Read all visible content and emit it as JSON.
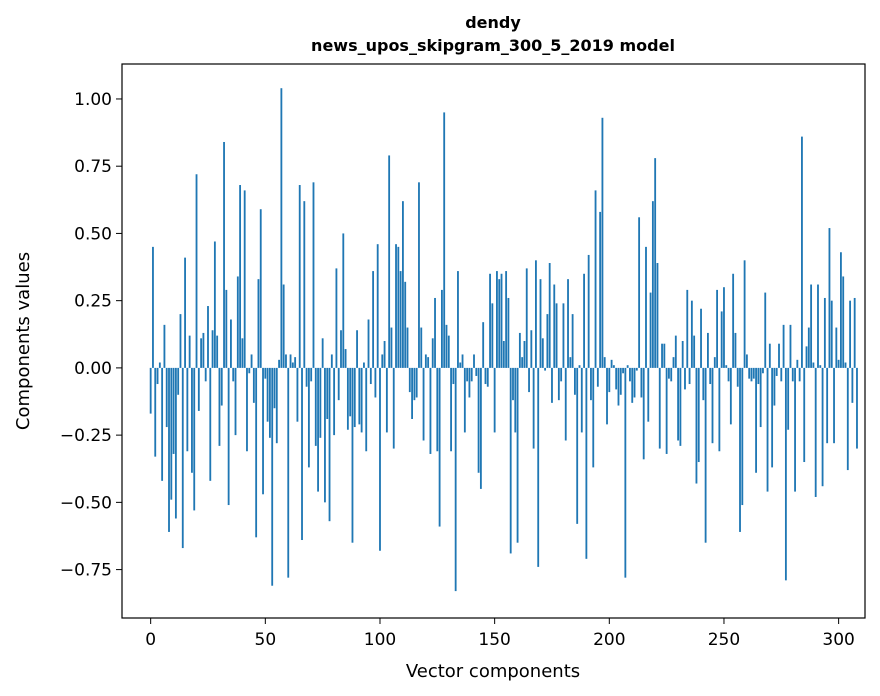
{
  "chart_data": {
    "type": "bar",
    "title": "dendy",
    "subtitle": "news_upos_skipgram_300_5_2019 model",
    "xlabel": "Vector components",
    "ylabel": "Components values",
    "xlim": [
      -12.5,
      311.5
    ],
    "ylim": [
      -0.93,
      1.13
    ],
    "xticks": [
      0,
      50,
      100,
      150,
      200,
      250,
      300
    ],
    "xtick_labels": [
      "0",
      "50",
      "100",
      "150",
      "200",
      "250",
      "300"
    ],
    "yticks": [
      -0.75,
      -0.5,
      -0.25,
      0.0,
      0.25,
      0.5,
      0.75,
      1.0
    ],
    "ytick_labels": [
      "−0.75",
      "−0.50",
      "−0.25",
      "0.00",
      "0.25",
      "0.50",
      "0.75",
      "1.00"
    ],
    "color": "#1f77b4",
    "values": [
      -0.17,
      0.45,
      -0.33,
      -0.06,
      0.02,
      -0.42,
      0.16,
      -0.22,
      -0.61,
      -0.49,
      -0.32,
      -0.56,
      -0.1,
      0.2,
      -0.67,
      0.41,
      -0.31,
      0.12,
      -0.39,
      -0.53,
      0.72,
      -0.16,
      0.11,
      0.13,
      -0.05,
      0.23,
      -0.42,
      0.14,
      0.47,
      0.12,
      -0.29,
      -0.14,
      0.84,
      0.29,
      -0.51,
      0.18,
      -0.05,
      -0.25,
      0.34,
      0.68,
      0.11,
      0.66,
      -0.31,
      -0.02,
      0.05,
      -0.13,
      -0.63,
      0.33,
      0.59,
      -0.47,
      -0.04,
      -0.2,
      -0.26,
      -0.81,
      -0.15,
      -0.28,
      0.03,
      1.04,
      0.31,
      0.05,
      -0.78,
      0.05,
      0.02,
      0.04,
      -0.2,
      0.68,
      -0.64,
      0.62,
      -0.07,
      -0.37,
      -0.05,
      0.69,
      -0.29,
      -0.46,
      -0.26,
      0.11,
      -0.5,
      -0.19,
      -0.57,
      0.05,
      -0.25,
      0.37,
      -0.12,
      0.14,
      0.5,
      0.07,
      -0.23,
      -0.18,
      -0.65,
      -0.22,
      0.14,
      -0.21,
      -0.24,
      0.02,
      -0.31,
      0.18,
      -0.06,
      0.36,
      -0.11,
      0.46,
      -0.68,
      0.05,
      0.1,
      -0.24,
      0.79,
      0.15,
      -0.3,
      0.46,
      0.45,
      0.36,
      0.62,
      0.32,
      0.15,
      -0.09,
      -0.19,
      -0.12,
      -0.11,
      0.69,
      0.15,
      -0.27,
      0.05,
      0.04,
      -0.32,
      0.11,
      0.26,
      -0.31,
      -0.59,
      0.29,
      0.95,
      0.16,
      0.12,
      -0.31,
      -0.06,
      -0.83,
      0.36,
      0.02,
      0.05,
      -0.24,
      -0.05,
      -0.11,
      -0.05,
      0.05,
      -0.03,
      -0.39,
      -0.45,
      0.17,
      -0.06,
      -0.07,
      0.35,
      0.24,
      -0.24,
      0.36,
      0.33,
      0.35,
      0.1,
      0.36,
      0.26,
      -0.69,
      -0.12,
      -0.24,
      -0.65,
      0.13,
      0.04,
      0.1,
      0.37,
      -0.09,
      0.14,
      -0.3,
      0.4,
      -0.74,
      0.33,
      0.11,
      -0.01,
      0.2,
      0.39,
      -0.13,
      0.31,
      0.24,
      -0.12,
      -0.05,
      0.24,
      -0.27,
      0.33,
      0.04,
      0.2,
      -0.1,
      -0.58,
      0.01,
      -0.24,
      0.35,
      -0.71,
      0.42,
      -0.12,
      -0.37,
      0.66,
      -0.07,
      0.58,
      0.93,
      0.04,
      -0.21,
      -0.09,
      0.03,
      0.01,
      -0.08,
      -0.14,
      -0.1,
      -0.02,
      -0.78,
      0.01,
      -0.05,
      -0.13,
      -0.11,
      -0.01,
      0.56,
      -0.11,
      -0.34,
      0.45,
      -0.2,
      0.28,
      0.62,
      0.78,
      0.39,
      -0.3,
      0.09,
      0.09,
      -0.32,
      -0.04,
      -0.05,
      0.04,
      0.12,
      -0.27,
      -0.29,
      0.1,
      -0.08,
      0.29,
      -0.06,
      0.25,
      0.12,
      -0.43,
      -0.35,
      0.22,
      -0.12,
      -0.65,
      0.13,
      -0.06,
      -0.28,
      0.04,
      0.29,
      -0.31,
      0.21,
      0.3,
      0.01,
      -0.05,
      -0.21,
      0.35,
      0.13,
      -0.07,
      -0.61,
      -0.51,
      0.4,
      0.05,
      -0.04,
      -0.05,
      -0.04,
      -0.39,
      -0.06,
      -0.22,
      -0.02,
      0.28,
      -0.46,
      0.09,
      -0.37,
      -0.14,
      -0.03,
      0.09,
      -0.05,
      0.16,
      -0.79,
      -0.23,
      0.16,
      -0.05,
      -0.46,
      0.03,
      -0.05,
      0.86,
      -0.35,
      0.08,
      0.15,
      0.31,
      0.02,
      -0.48,
      0.31,
      0.01,
      -0.44,
      0.26,
      -0.28,
      0.52,
      0.25,
      -0.28,
      0.15,
      0.03,
      0.43,
      0.34,
      0.02,
      -0.38,
      0.25,
      -0.13,
      0.26,
      -0.3
    ]
  }
}
